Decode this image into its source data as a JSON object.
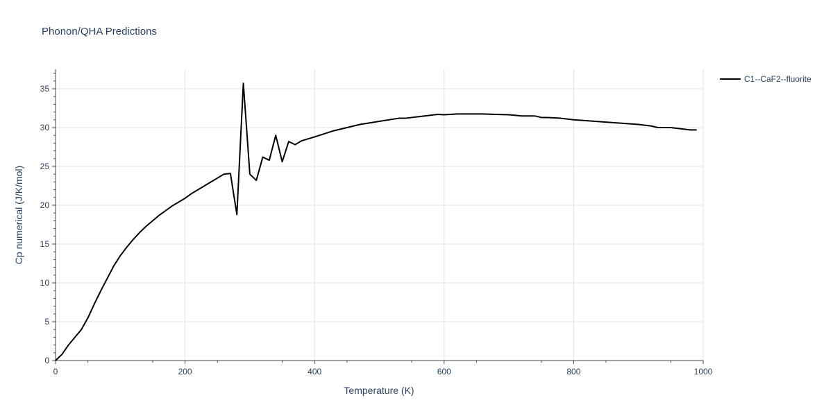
{
  "chart_data": {
    "type": "line",
    "title": "Phonon/QHA Predictions",
    "xlabel": "Temperature (K)",
    "ylabel": "Cp numerical (J/K/mol)",
    "xlim": [
      0,
      1000
    ],
    "ylim": [
      0,
      37.5
    ],
    "x_ticks": [
      0,
      200,
      400,
      600,
      800,
      1000
    ],
    "y_ticks": [
      0,
      5,
      10,
      15,
      20,
      25,
      30,
      35
    ],
    "x_tick_labels": [
      "0",
      "200",
      "400",
      "600",
      "800",
      "1000"
    ],
    "y_tick_labels": [
      "0",
      "5",
      "10",
      "15",
      "20",
      "25",
      "30",
      "35"
    ],
    "grid": true,
    "legend_position": "top-right",
    "series": [
      {
        "name": "C1--CaF2--fluorite",
        "color": "#000000",
        "x": [
          0,
          10,
          20,
          30,
          40,
          50,
          60,
          70,
          80,
          90,
          100,
          110,
          120,
          130,
          140,
          150,
          160,
          170,
          180,
          190,
          200,
          210,
          220,
          230,
          240,
          250,
          260,
          270,
          280,
          290,
          300,
          310,
          320,
          330,
          340,
          350,
          360,
          370,
          380,
          400,
          430,
          470,
          500,
          530,
          540,
          550,
          560,
          580,
          590,
          600,
          620,
          640,
          660,
          680,
          700,
          720,
          740,
          750,
          760,
          780,
          800,
          850,
          900,
          920,
          930,
          950,
          970,
          980,
          990
        ],
        "y": [
          0,
          0.8,
          2.0,
          3.0,
          4.0,
          5.5,
          7.3,
          9.0,
          10.6,
          12.2,
          13.5,
          14.6,
          15.6,
          16.5,
          17.3,
          18.0,
          18.7,
          19.3,
          19.9,
          20.4,
          20.9,
          21.5,
          22.0,
          22.5,
          23.0,
          23.5,
          24.0,
          24.1,
          18.8,
          35.7,
          24.0,
          23.2,
          26.2,
          25.8,
          29.0,
          25.6,
          28.2,
          27.8,
          28.3,
          28.8,
          29.6,
          30.4,
          30.8,
          31.2,
          31.2,
          31.3,
          31.4,
          31.6,
          31.7,
          31.65,
          31.75,
          31.75,
          31.75,
          31.7,
          31.65,
          31.5,
          31.5,
          31.3,
          31.3,
          31.2,
          31.0,
          30.7,
          30.4,
          30.2,
          30.0,
          30.0,
          29.8,
          29.7,
          29.7
        ]
      }
    ]
  }
}
